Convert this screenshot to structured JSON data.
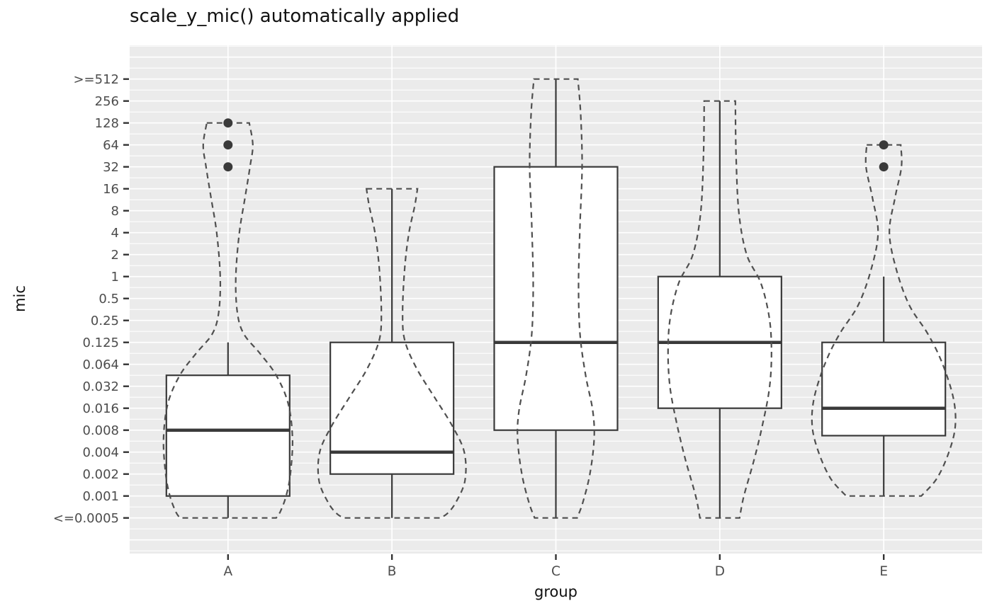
{
  "title": "scale_y_mic() automatically applied",
  "chart_data": {
    "type": "boxplot",
    "subtype": "boxplot-with-dashed-violin-overlay",
    "title": "scale_y_mic() automatically applied",
    "xlabel": "group",
    "ylabel": "mic",
    "legend": "none",
    "x_categories": [
      "A",
      "B",
      "C",
      "D",
      "E"
    ],
    "y_tick_labels": [
      ">=512",
      "256",
      "128",
      "64",
      "32",
      "16",
      "8",
      "4",
      "2",
      "1",
      "0.5",
      "0.25",
      "0.125",
      "0.064",
      "0.032",
      "0.016",
      "0.008",
      "0.004",
      "0.002",
      "0.001",
      "<=0.0005"
    ],
    "y_scale_note": "MIC two-fold dilution ladder, evenly spaced; index 0 = >=512 (top), index 20 = <=0.0005 (bottom)",
    "colors": {
      "panel_background": "#EBEBEB",
      "gridline": "#FFFFFF",
      "box_line": "#3A3A3A",
      "violin_line": "#4F4F4F",
      "outlier_dot": "#3A3A3A",
      "tick_label": "#4D4D4D",
      "tick_mark": "#333333",
      "title_text": "#111111"
    },
    "boxplots": [
      {
        "group": "A",
        "whisker_low": "0.0005",
        "q1": "0.001",
        "median": "0.008",
        "q3": "0.045",
        "whisker_high": "0.125",
        "outliers_mic": [
          "32",
          "64",
          "128"
        ],
        "idx": {
          "whisker_low": 20,
          "q1": 19,
          "median": 16,
          "q3": 13.5,
          "whisker_high": 12,
          "outliers": [
            4,
            3,
            2
          ]
        }
      },
      {
        "group": "B",
        "whisker_low": "0.0005",
        "q1": "0.002",
        "median": "0.004",
        "q3": "0.125",
        "whisker_high": "16",
        "outliers_mic": [],
        "idx": {
          "whisker_low": 20,
          "q1": 18,
          "median": 17,
          "q3": 12,
          "whisker_high": 5,
          "outliers": []
        }
      },
      {
        "group": "C",
        "whisker_low": "0.0005",
        "q1": "0.008",
        "median": "0.125",
        "q3": "32",
        "whisker_high": "512",
        "outliers_mic": [],
        "idx": {
          "whisker_low": 20,
          "q1": 16,
          "median": 12,
          "q3": 4,
          "whisker_high": 0,
          "outliers": []
        }
      },
      {
        "group": "D",
        "whisker_low": "0.0005",
        "q1": "0.016",
        "median": "0.125",
        "q3": "1",
        "whisker_high": "256",
        "outliers_mic": [],
        "idx": {
          "whisker_low": 20,
          "q1": 15,
          "median": 12,
          "q3": 9,
          "whisker_high": 1,
          "outliers": []
        }
      },
      {
        "group": "E",
        "whisker_low": "0.001",
        "q1": "0.007",
        "median": "0.016",
        "q3": "0.125",
        "whisker_high": "1",
        "outliers_mic": [
          "32",
          "64"
        ],
        "idx": {
          "whisker_low": 19,
          "q1": 16.25,
          "median": 15,
          "q3": 12,
          "whisker_high": 9,
          "outliers": [
            4,
            3
          ]
        }
      }
    ],
    "violin_profiles_idx_halfwidth": {
      "A": [
        [
          2.0,
          30
        ],
        [
          3.0,
          35
        ],
        [
          4.0,
          31
        ],
        [
          5.4,
          24
        ],
        [
          7.0,
          16
        ],
        [
          9.0,
          11
        ],
        [
          10.6,
          13
        ],
        [
          11.6,
          22
        ],
        [
          12.5,
          45
        ],
        [
          13.5,
          68
        ],
        [
          14.8,
          85
        ],
        [
          16.4,
          91
        ],
        [
          18.0,
          88
        ],
        [
          19.0,
          82
        ],
        [
          19.7,
          74
        ],
        [
          20,
          68
        ]
      ],
      "B": [
        [
          5.0,
          36
        ],
        [
          5.8,
          32
        ],
        [
          7.0,
          24
        ],
        [
          8.6,
          18
        ],
        [
          10.6,
          15
        ],
        [
          11.9,
          18
        ],
        [
          13.2,
          35
        ],
        [
          14.5,
          60
        ],
        [
          15.8,
          85
        ],
        [
          17.0,
          102
        ],
        [
          18.3,
          103
        ],
        [
          19.3,
          90
        ],
        [
          19.8,
          78
        ],
        [
          20,
          68
        ]
      ],
      "C": [
        [
          0,
          31
        ],
        [
          1.6,
          35
        ],
        [
          4.0,
          37
        ],
        [
          6.7,
          34
        ],
        [
          9.3,
          32
        ],
        [
          11.6,
          34
        ],
        [
          13.5,
          42
        ],
        [
          15.1,
          52
        ],
        [
          16.4,
          54
        ],
        [
          18.0,
          48
        ],
        [
          19.3,
          38
        ],
        [
          20,
          30
        ]
      ],
      "D": [
        [
          1.0,
          22
        ],
        [
          3.5,
          23
        ],
        [
          6.1,
          27
        ],
        [
          8.0,
          38
        ],
        [
          9.3,
          58
        ],
        [
          10.9,
          70
        ],
        [
          12.5,
          73
        ],
        [
          14.1,
          70
        ],
        [
          15.8,
          60
        ],
        [
          17.4,
          48
        ],
        [
          19.0,
          34
        ],
        [
          20,
          28
        ]
      ],
      "E": [
        [
          3.0,
          24
        ],
        [
          4.0,
          25
        ],
        [
          5.4,
          16
        ],
        [
          7.0,
          8
        ],
        [
          8.7,
          18
        ],
        [
          10.3,
          36
        ],
        [
          11.6,
          62
        ],
        [
          12.9,
          82
        ],
        [
          14.5,
          98
        ],
        [
          15.8,
          101
        ],
        [
          17.0,
          92
        ],
        [
          18.2,
          75
        ],
        [
          19.0,
          53
        ]
      ]
    }
  }
}
